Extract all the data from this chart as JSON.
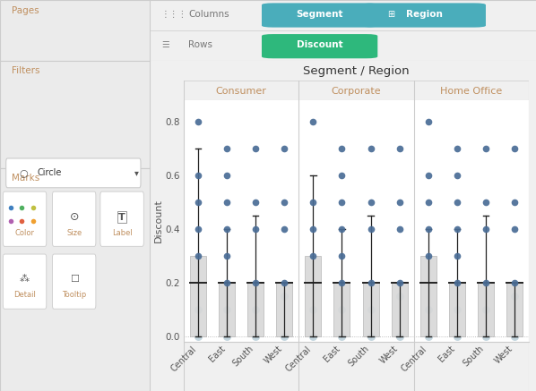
{
  "title": "Segment / Region",
  "ylabel": "Discount",
  "segments": [
    "Consumer",
    "Corporate",
    "Home Office"
  ],
  "regions": [
    "Central",
    "East",
    "South",
    "West"
  ],
  "bg_color": "#f0f0f0",
  "sidebar_bg": "#ebebeb",
  "chart_bg": "#ffffff",
  "box_fill": "#d0d0d0",
  "box_edge": "#aaaaaa",
  "whisker_color": "#222222",
  "dot_dark": "#4a6d96",
  "dot_light": "#8aafc0",
  "median_color": "#222222",
  "seg_header_color": "#c09060",
  "title_color": "#333333",
  "segment_pill": "#4aadbb",
  "region_pill": "#4aadbb",
  "discount_pill": "#2eb87c",
  "toolbar_text": "#777777",
  "sidebar_section_text": "#c09060",
  "ylim": [
    -0.02,
    0.88
  ],
  "yticks": [
    0.0,
    0.2,
    0.4,
    0.6,
    0.8
  ],
  "boxplot_data": {
    "Consumer": {
      "Central": {
        "q1": 0.0,
        "q3": 0.3,
        "median": 0.2,
        "whisker_low": 0.0,
        "whisker_high": 0.7,
        "dots_dark": [
          0.8,
          0.6,
          0.5,
          0.4,
          0.3
        ],
        "dots_light": [
          0.1,
          0.0
        ]
      },
      "East": {
        "q1": 0.0,
        "q3": 0.2,
        "median": 0.2,
        "whisker_low": 0.0,
        "whisker_high": 0.4,
        "dots_dark": [
          0.7,
          0.6,
          0.5,
          0.4,
          0.3,
          0.2
        ],
        "dots_light": [
          0.1,
          0.0
        ]
      },
      "South": {
        "q1": 0.0,
        "q3": 0.2,
        "median": 0.2,
        "whisker_low": 0.0,
        "whisker_high": 0.45,
        "dots_dark": [
          0.7,
          0.5,
          0.4,
          0.2
        ],
        "dots_light": [
          0.1,
          0.0
        ]
      },
      "West": {
        "q1": 0.0,
        "q3": 0.2,
        "median": 0.2,
        "whisker_low": 0.0,
        "whisker_high": 0.2,
        "dots_dark": [
          0.7,
          0.5,
          0.4,
          0.2
        ],
        "dots_light": [
          0.15,
          0.0
        ]
      }
    },
    "Corporate": {
      "Central": {
        "q1": 0.0,
        "q3": 0.3,
        "median": 0.2,
        "whisker_low": 0.0,
        "whisker_high": 0.6,
        "dots_dark": [
          0.8,
          0.5,
          0.4,
          0.3
        ],
        "dots_light": [
          0.1,
          0.0
        ]
      },
      "East": {
        "q1": 0.0,
        "q3": 0.2,
        "median": 0.2,
        "whisker_low": 0.0,
        "whisker_high": 0.4,
        "dots_dark": [
          0.7,
          0.6,
          0.5,
          0.4,
          0.3,
          0.2
        ],
        "dots_light": [
          0.1,
          0.0
        ]
      },
      "South": {
        "q1": 0.0,
        "q3": 0.2,
        "median": 0.2,
        "whisker_low": 0.0,
        "whisker_high": 0.45,
        "dots_dark": [
          0.7,
          0.5,
          0.4,
          0.2
        ],
        "dots_light": [
          0.1,
          0.0
        ]
      },
      "West": {
        "q1": 0.0,
        "q3": 0.2,
        "median": 0.2,
        "whisker_low": 0.0,
        "whisker_high": 0.2,
        "dots_dark": [
          0.7,
          0.5,
          0.4,
          0.2
        ],
        "dots_light": [
          0.15,
          0.0
        ]
      }
    },
    "Home Office": {
      "Central": {
        "q1": 0.0,
        "q3": 0.3,
        "median": 0.2,
        "whisker_low": 0.0,
        "whisker_high": 0.4,
        "dots_dark": [
          0.8,
          0.6,
          0.5,
          0.4,
          0.3
        ],
        "dots_light": [
          0.1,
          0.0
        ]
      },
      "East": {
        "q1": 0.0,
        "q3": 0.2,
        "median": 0.2,
        "whisker_low": 0.0,
        "whisker_high": 0.4,
        "dots_dark": [
          0.7,
          0.6,
          0.5,
          0.4,
          0.3,
          0.2
        ],
        "dots_light": [
          0.1,
          0.0
        ]
      },
      "South": {
        "q1": 0.0,
        "q3": 0.2,
        "median": 0.2,
        "whisker_low": 0.0,
        "whisker_high": 0.45,
        "dots_dark": [
          0.7,
          0.5,
          0.4,
          0.2
        ],
        "dots_light": [
          0.1,
          0.0
        ]
      },
      "West": {
        "q1": 0.0,
        "q3": 0.2,
        "median": 0.2,
        "whisker_low": 0.0,
        "whisker_high": 0.2,
        "dots_dark": [
          0.7,
          0.5,
          0.4,
          0.2
        ],
        "dots_light": [
          0.15,
          0.0
        ]
      }
    }
  }
}
